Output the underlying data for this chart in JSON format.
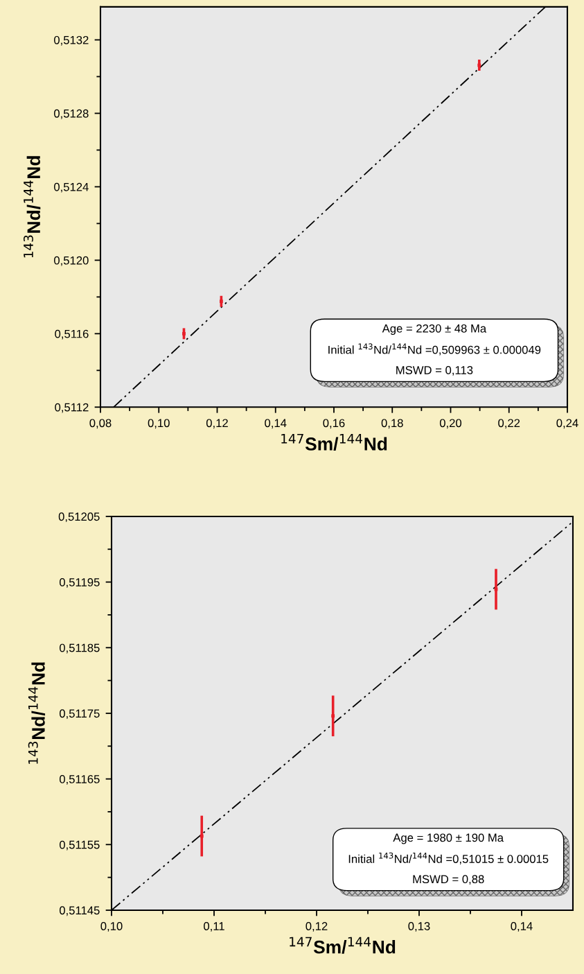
{
  "chart_data": [
    {
      "type": "scatter",
      "xlabel": "$^{147}$Sm/$^{144}$Nd",
      "ylabel": "$^{143}$Nd/$^{144}$Nd",
      "xlim": [
        0.08,
        0.24
      ],
      "ylim": [
        0.5112,
        0.51338
      ],
      "xticks": [
        {
          "value": 0.08,
          "label": "0,08"
        },
        {
          "value": 0.09,
          "label": null
        },
        {
          "value": 0.1,
          "label": "0,10"
        },
        {
          "value": 0.11,
          "label": null
        },
        {
          "value": 0.12,
          "label": "0,12"
        },
        {
          "value": 0.13,
          "label": null
        },
        {
          "value": 0.14,
          "label": "0,14"
        },
        {
          "value": 0.15,
          "label": null
        },
        {
          "value": 0.16,
          "label": "0,16"
        },
        {
          "value": 0.17,
          "label": null
        },
        {
          "value": 0.18,
          "label": "0,18"
        },
        {
          "value": 0.19,
          "label": null
        },
        {
          "value": 0.2,
          "label": "0,20"
        },
        {
          "value": 0.21,
          "label": null
        },
        {
          "value": 0.22,
          "label": "0,22"
        },
        {
          "value": 0.23,
          "label": null
        },
        {
          "value": 0.24,
          "label": "0,24"
        }
      ],
      "yticks": [
        {
          "value": 0.5112,
          "label": "0,5112"
        },
        {
          "value": 0.5114,
          "label": null
        },
        {
          "value": 0.5116,
          "label": "0,5116"
        },
        {
          "value": 0.5118,
          "label": null
        },
        {
          "value": 0.512,
          "label": "0,5120"
        },
        {
          "value": 0.5122,
          "label": null
        },
        {
          "value": 0.5124,
          "label": "0,5124"
        },
        {
          "value": 0.5126,
          "label": null
        },
        {
          "value": 0.5128,
          "label": "0,5128"
        },
        {
          "value": 0.513,
          "label": null
        },
        {
          "value": 0.5132,
          "label": "0,5132"
        }
      ],
      "grid": false,
      "legend": false,
      "series": [
        {
          "type": "scatter",
          "marker": "square",
          "color": "#e8202a",
          "x": [
            0.1086,
            0.1214,
            0.2098
          ],
          "values": [
            0.5116,
            0.511776,
            0.513062
          ],
          "errors": [
            3e-05,
            3e-05,
            3e-05
          ]
        },
        {
          "type": "line",
          "color": "#000000",
          "line_style": "dashdotdot",
          "x": [
            0.0845,
            0.2325
          ],
          "values": [
            0.5112,
            0.51338
          ]
        }
      ],
      "annotations": [
        "Age = 2230 ± 48 Ma",
        "Initial $^{143}$Nd/$^{144}$Nd =0,509963 ± 0.000049",
        "MSWD = 0,113"
      ]
    },
    {
      "type": "scatter",
      "xlabel": "$^{147}$Sm/$^{144}$Nd",
      "ylabel": "$^{143}$Nd/$^{144}$Nd",
      "xlim": [
        0.1,
        0.145
      ],
      "ylim": [
        0.51145,
        0.51205
      ],
      "xticks": [
        {
          "value": 0.1,
          "label": "0,10"
        },
        {
          "value": 0.105,
          "label": null
        },
        {
          "value": 0.11,
          "label": "0,11"
        },
        {
          "value": 0.115,
          "label": null
        },
        {
          "value": 0.12,
          "label": "0,12"
        },
        {
          "value": 0.125,
          "label": null
        },
        {
          "value": 0.13,
          "label": "0,13"
        },
        {
          "value": 0.135,
          "label": null
        },
        {
          "value": 0.14,
          "label": "0,14"
        }
      ],
      "yticks": [
        {
          "value": 0.51145,
          "label": "0,51145"
        },
        {
          "value": 0.5115,
          "label": null
        },
        {
          "value": 0.51155,
          "label": "0,51155"
        },
        {
          "value": 0.5116,
          "label": null
        },
        {
          "value": 0.51165,
          "label": "0,51165"
        },
        {
          "value": 0.5117,
          "label": null
        },
        {
          "value": 0.51175,
          "label": "0,51175"
        },
        {
          "value": 0.5118,
          "label": null
        },
        {
          "value": 0.51185,
          "label": "0,51185"
        },
        {
          "value": 0.5119,
          "label": null
        },
        {
          "value": 0.51195,
          "label": "0,51195"
        },
        {
          "value": 0.512,
          "label": null
        },
        {
          "value": 0.51205,
          "label": "0,51205"
        }
      ],
      "grid": false,
      "legend": false,
      "series": [
        {
          "type": "scatter",
          "marker": "square",
          "color": "#e8202a",
          "x": [
            0.1088,
            0.1216,
            0.1375
          ],
          "values": [
            0.511563,
            0.511746,
            0.511939
          ],
          "errors": [
            3.1e-05,
            3.1e-05,
            3.1e-05
          ]
        },
        {
          "type": "line",
          "color": "#000000",
          "line_style": "dashdotdot",
          "x": [
            0.1,
            0.145
          ],
          "values": [
            0.51145,
            0.512042
          ]
        }
      ],
      "annotations": [
        "Age = 1980 ± 190 Ma",
        "Initial $^{143}$Nd/$^{144}$Nd =0,51015 ± 0.00015",
        "MSWD = 0,88"
      ]
    }
  ]
}
